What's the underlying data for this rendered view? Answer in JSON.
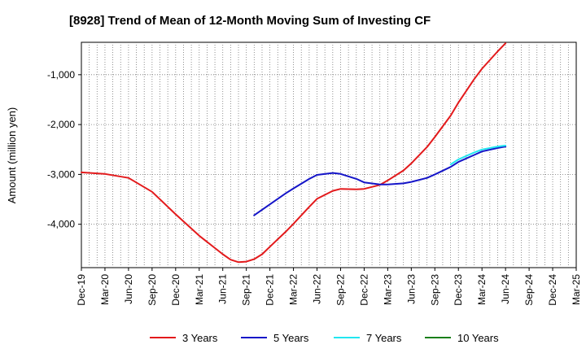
{
  "chart_data": {
    "type": "line",
    "title": "[8928]  Trend of Mean of 12-Month Moving Sum of Investing CF",
    "ylabel": "Amount (million yen)",
    "xlabel": "",
    "ylim": [
      -4870,
      -350
    ],
    "yticks": [
      -4000,
      -3000,
      -2000,
      -1000
    ],
    "ytick_labels": [
      "-4,000",
      "-3,000",
      "-2,000",
      "-1,000"
    ],
    "x_categories": [
      "Dec-19",
      "Mar-20",
      "Jun-20",
      "Sep-20",
      "Dec-20",
      "Mar-21",
      "Jun-21",
      "Sep-21",
      "Dec-21",
      "Mar-22",
      "Jun-22",
      "Sep-22",
      "Dec-22",
      "Mar-23",
      "Jun-23",
      "Sep-23",
      "Dec-23",
      "Mar-24",
      "Jun-24",
      "Sep-24",
      "Dec-24",
      "Mar-25"
    ],
    "series": [
      {
        "name": "3 Years",
        "color": "#e31a1c",
        "x": [
          0,
          1,
          2,
          3,
          4,
          5,
          6,
          6.33,
          6.67,
          7,
          7.33,
          7.67,
          8,
          8.67,
          9,
          9.67,
          10,
          10.67,
          11,
          11.67,
          12,
          12.67,
          13,
          13.67,
          14,
          14.67,
          15,
          15.67,
          16,
          16.67,
          17,
          17.67,
          18
        ],
        "values": [
          -2960,
          -2990,
          -3070,
          -3350,
          -3800,
          -4230,
          -4600,
          -4710,
          -4760,
          -4750,
          -4700,
          -4600,
          -4450,
          -4150,
          -3990,
          -3650,
          -3490,
          -3330,
          -3290,
          -3300,
          -3290,
          -3210,
          -3120,
          -2920,
          -2780,
          -2450,
          -2250,
          -1820,
          -1560,
          -1090,
          -880,
          -530,
          -370
        ]
      },
      {
        "name": "5 Years",
        "color": "#1515c8",
        "x": [
          7.33,
          8,
          8.67,
          9,
          9.67,
          10,
          10.67,
          11,
          11.67,
          12,
          12.67,
          13,
          13.67,
          14,
          14.67,
          15,
          15.67,
          16,
          16.67,
          17,
          17.67,
          18
        ],
        "values": [
          -3820,
          -3600,
          -3380,
          -3280,
          -3090,
          -3010,
          -2970,
          -2990,
          -3090,
          -3160,
          -3200,
          -3200,
          -3180,
          -3150,
          -3070,
          -3000,
          -2850,
          -2750,
          -2610,
          -2540,
          -2470,
          -2440
        ]
      },
      {
        "name": "7 Years",
        "color": "#22e6f0",
        "x": [
          15.67,
          16,
          16.67,
          17,
          17.67,
          18
        ],
        "values": [
          -2800,
          -2700,
          -2560,
          -2500,
          -2440,
          -2420
        ]
      },
      {
        "name": "10 Years",
        "color": "#1a7f1a",
        "x": [],
        "values": []
      }
    ],
    "legend_position": "bottom",
    "grid": true
  }
}
